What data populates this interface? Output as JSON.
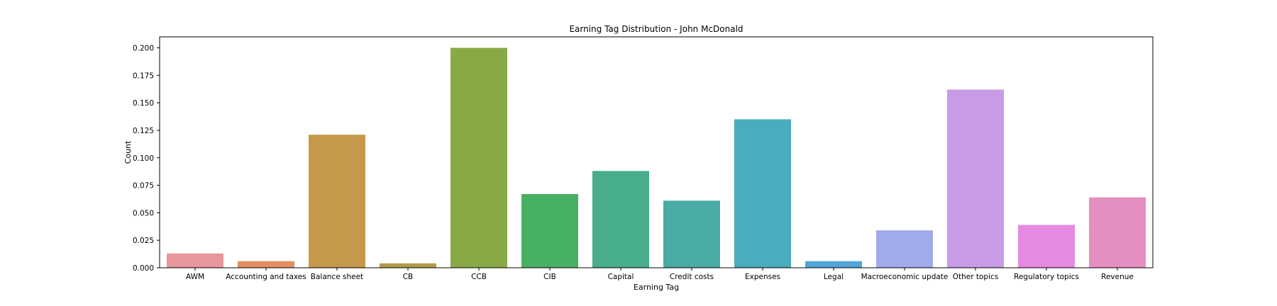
{
  "chart_data": {
    "type": "bar",
    "title": "Earning Tag Distribution - John McDonald",
    "xlabel": "Earning Tag",
    "ylabel": "Count",
    "ylim": [
      0,
      0.21
    ],
    "yticks": [
      0.0,
      0.025,
      0.05,
      0.075,
      0.1,
      0.125,
      0.15,
      0.175,
      0.2
    ],
    "ytick_labels": [
      "0.000",
      "0.025",
      "0.050",
      "0.075",
      "0.100",
      "0.125",
      "0.150",
      "0.175",
      "0.200"
    ],
    "categories": [
      "AWM",
      "Accounting and taxes",
      "Balance sheet",
      "CB",
      "CCB",
      "CIB",
      "Capital",
      "Credit costs",
      "Expenses",
      "Legal",
      "Macroeconomic update",
      "Other topics",
      "Regulatory topics",
      "Revenue"
    ],
    "values": [
      0.013,
      0.006,
      0.121,
      0.004,
      0.2,
      0.067,
      0.088,
      0.061,
      0.135,
      0.006,
      0.034,
      0.162,
      0.039,
      0.064
    ],
    "colors": [
      "#e8969c",
      "#e28f62",
      "#c49a4a",
      "#b09b4a",
      "#89a947",
      "#48b062",
      "#47ad8c",
      "#49aba4",
      "#4aacbc",
      "#50a6d6",
      "#9fabea",
      "#c79be6",
      "#e58ae0",
      "#e58fc0"
    ],
    "grid": false,
    "legend": "none"
  }
}
